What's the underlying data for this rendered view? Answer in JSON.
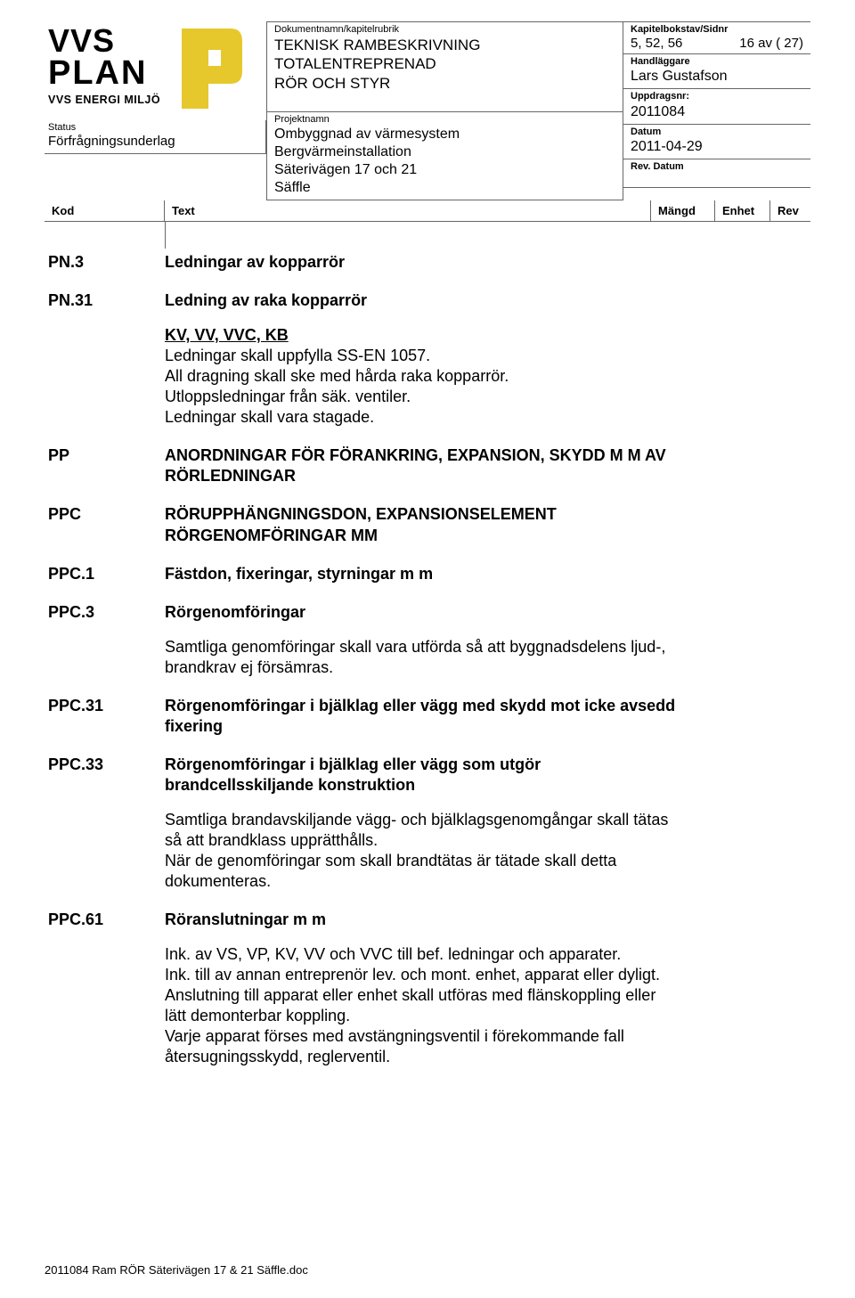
{
  "header": {
    "doc_label": "Dokumentnamn/kapitelrubrik",
    "doc_title_line1": "TEKNISK RAMBESKRIVNING TOTALENTREPRENAD",
    "doc_title_line2": "RÖR OCH STYR",
    "kapitel_label": "Kapitelbokstav/Sidnr",
    "kapitel_value": "5, 52, 56",
    "page_num": "16 av ( 27)",
    "handlaggare_label": "Handläggare",
    "handlaggare_value": "Lars Gustafson",
    "projekt_label": "Projektnamn",
    "projekt_line1": "Ombyggnad av värmesystem",
    "projekt_line2": "Bergvärmeinstallation",
    "projekt_line3": "Säterivägen 17 och 21",
    "projekt_line4": "Säffle",
    "uppdrag_label": "Uppdragsnr:",
    "uppdrag_value": "2011084",
    "datum_label": "Datum",
    "datum_value": "2011-04-29",
    "revdatum_label": "Rev. Datum",
    "status_label": "Status",
    "status_value": "Förfrågningsunderlag",
    "col_kod": "Kod",
    "col_text": "Text",
    "col_mangd": "Mängd",
    "col_enhet": "Enhet",
    "col_rev": "Rev",
    "logo_tagline": "VVS ENERGI MILJÖ"
  },
  "sections": [
    {
      "kod": "PN.3",
      "heading": "Ledningar av kopparrör"
    },
    {
      "kod": "PN.31",
      "heading": "Ledning av raka kopparrör",
      "para_und": "KV, VV, VVC, KB",
      "para": "Ledningar skall uppfylla SS-EN 1057.\nAll dragning skall ske med hårda raka kopparrör.\nUtloppsledningar från säk. ventiler.\nLedningar skall vara stagade."
    },
    {
      "kod": "PP",
      "heading": "ANORDNINGAR FÖR FÖRANKRING, EXPANSION, SKYDD M M AV RÖRLEDNINGAR"
    },
    {
      "kod": "PPC",
      "heading": "RÖRUPPHÄNGNINGSDON, EXPANSIONSELEMENT RÖRGENOMFÖRINGAR MM"
    },
    {
      "kod": "PPC.1",
      "heading": "Fästdon, fixeringar, styrningar m m"
    },
    {
      "kod": "PPC.3",
      "heading": "Rörgenomföringar",
      "para": "Samtliga genomföringar skall vara utförda så att byggnadsdelens ljud-, brandkrav ej försämras."
    },
    {
      "kod": "PPC.31",
      "heading": "Rörgenomföringar i bjälklag eller vägg med skydd mot icke avsedd fixering"
    },
    {
      "kod": "PPC.33",
      "heading": "Rörgenomföringar i bjälklag eller vägg som utgör brandcellsskiljande konstruktion",
      "para": "Samtliga brandavskiljande vägg- och bjälklagsgenomgångar skall tätas så att brandklass upprätthålls.\nNär de genomföringar som skall brandtätas är tätade skall detta dokumenteras."
    },
    {
      "kod": "PPC.61",
      "heading": "Röranslutningar m m",
      "para": "Ink. av VS, VP, KV, VV och VVC till bef. ledningar och apparater.\nInk. till av annan entreprenör lev. och mont. enhet, apparat eller dyligt.\nAnslutning till apparat eller enhet skall utföras med flänskoppling eller lätt demonterbar koppling.\nVarje apparat förses med avstängningsventil i förekommande fall återsugningsskydd, reglerventil."
    }
  ],
  "footer": "2011084 Ram RÖR Säterivägen 17 & 21 Säffle.doc"
}
